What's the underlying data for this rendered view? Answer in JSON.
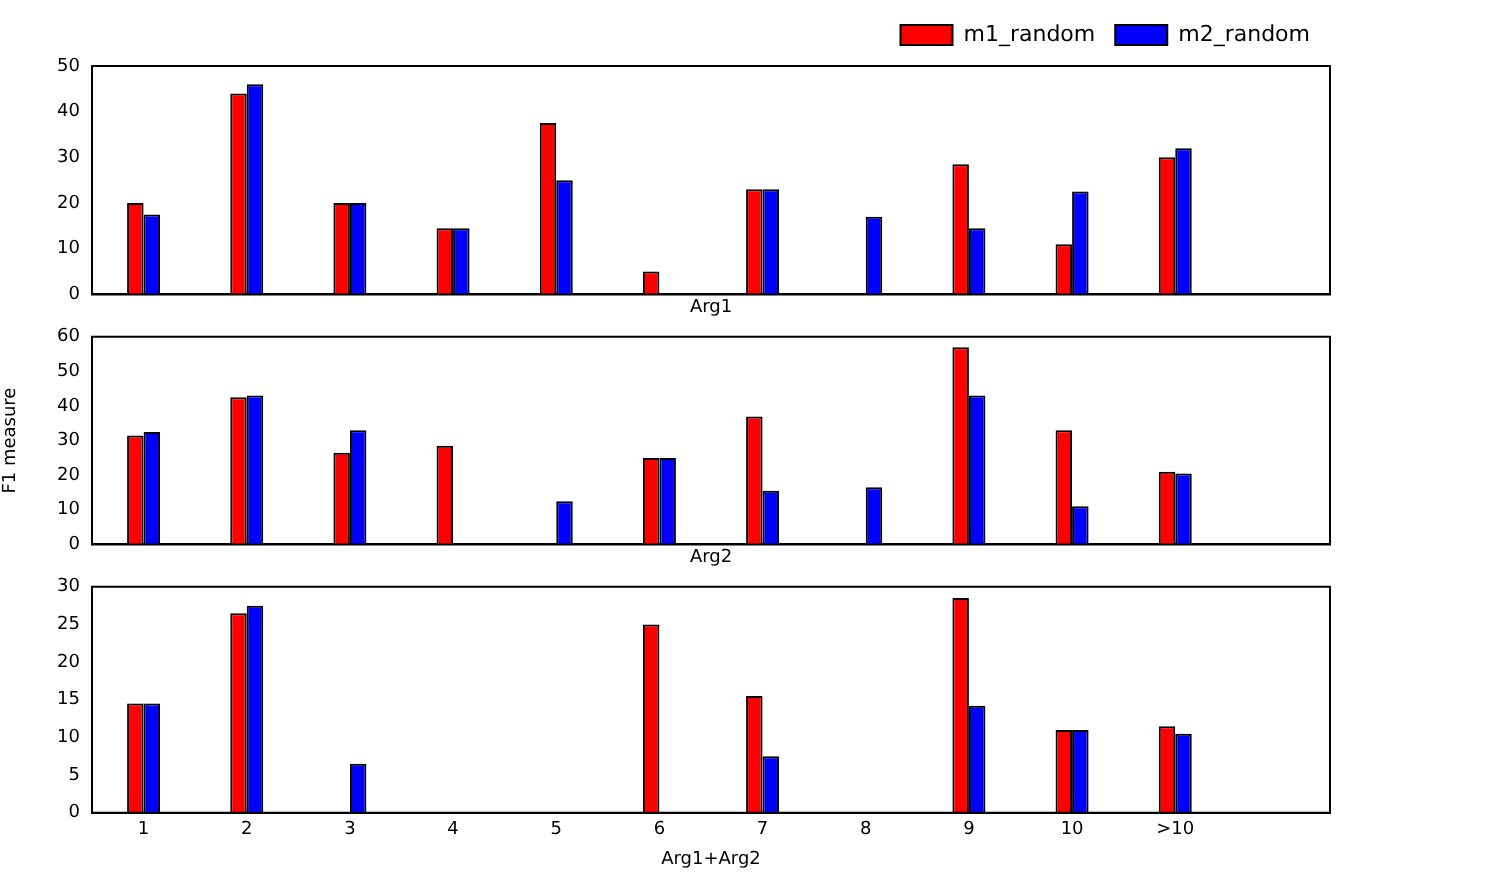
{
  "chart_data": [
    {
      "type": "bar",
      "xlabel": "Arg1",
      "categories": [
        null,
        null,
        null,
        null,
        null,
        null,
        null,
        null,
        null,
        null,
        null,
        null
      ],
      "ylim": [
        0,
        50
      ],
      "yticks": [
        0,
        10,
        20,
        30,
        40,
        50
      ],
      "tick_labels": "y",
      "legend": "top right",
      "grid": false,
      "series": [
        {
          "name": "m1_random",
          "color": "#ff0000",
          "values": [
            20,
            44,
            20,
            14.5,
            37.5,
            5,
            23,
            0,
            28.5,
            11,
            30,
            null
          ]
        },
        {
          "name": "m2_random",
          "color": "#0000ff",
          "values": [
            17.5,
            46,
            20,
            14.5,
            25,
            0,
            23,
            17,
            14.5,
            22.5,
            32,
            null
          ]
        }
      ]
    },
    {
      "type": "bar",
      "xlabel": "Arg2",
      "ylabel": "F1 measure",
      "categories": [
        null,
        null,
        null,
        null,
        null,
        null,
        null,
        null,
        null,
        null,
        null,
        null
      ],
      "ylim": [
        0,
        60
      ],
      "yticks": [
        0,
        10,
        20,
        30,
        40,
        50,
        60
      ],
      "tick_labels": "y",
      "legend": false,
      "grid": false,
      "series": [
        {
          "color": "#ff0000",
          "values": [
            31.5,
            42.5,
            26.5,
            28.5,
            0,
            25,
            37,
            0,
            57,
            33,
            21,
            null
          ]
        },
        {
          "color": "#0000ff",
          "values": [
            32.5,
            43,
            33,
            0,
            12.5,
            25,
            15.5,
            16.5,
            43,
            11,
            20.5,
            null
          ]
        }
      ]
    },
    {
      "type": "bar",
      "xlabel": "Arg1+Arg2",
      "categories": [
        "1",
        "2",
        "3",
        "4",
        "5",
        "6",
        "7",
        "8",
        "9",
        "10",
        ">10",
        null
      ],
      "ylim": [
        0,
        30
      ],
      "yticks": [
        0,
        5,
        10,
        15,
        20,
        25,
        30
      ],
      "legend": false,
      "grid": false,
      "series": [
        {
          "color": "#ff0000",
          "values": [
            14.5,
            26.5,
            0,
            0,
            0,
            25,
            15.5,
            0,
            28.5,
            11,
            11.5,
            null
          ]
        },
        {
          "color": "#0000ff",
          "values": [
            14.5,
            27.5,
            6.5,
            0,
            0,
            0,
            7.5,
            0,
            14.2,
            11,
            10.5,
            null
          ]
        }
      ]
    }
  ]
}
